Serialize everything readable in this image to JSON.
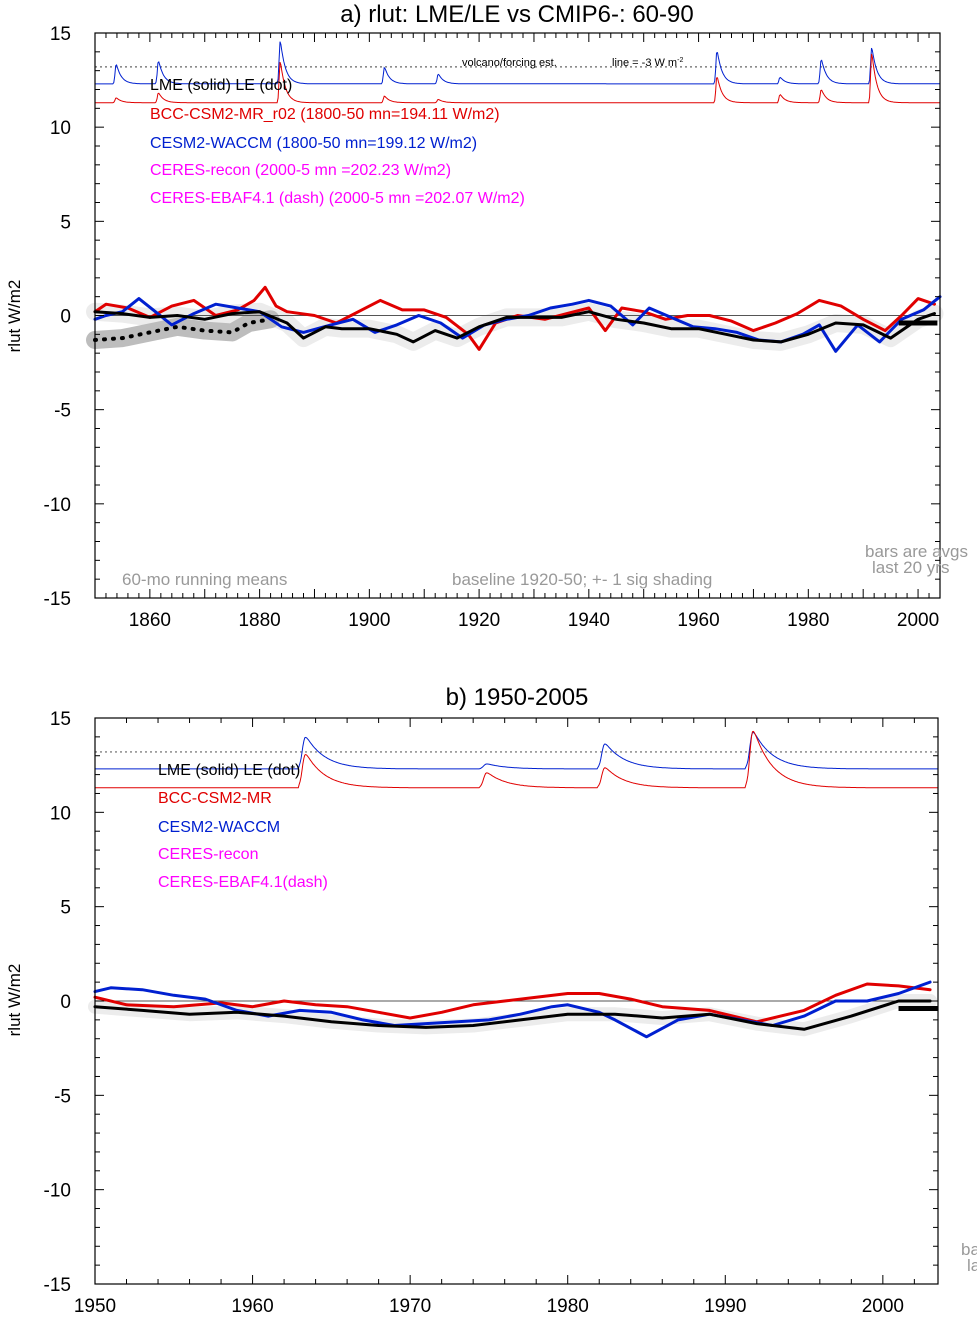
{
  "chart_data": [
    {
      "type": "line",
      "title": "a) rlut: LME/LE vs CMIP6-: 60-90",
      "ylabel": "rlut W/m2",
      "xlim": [
        1850,
        2004
      ],
      "ylim": [
        -15,
        15
      ],
      "xticks": [
        1860,
        1880,
        1900,
        1920,
        1940,
        1960,
        1980,
        2000
      ],
      "yticks": [
        -15,
        -10,
        -5,
        0,
        5,
        10,
        15
      ],
      "grid": false,
      "legend": [
        {
          "text": "LME (solid)   LE (dot)",
          "color": "#000000"
        },
        {
          "text": "BCC-CSM2-MR_r02 (1800-50 mn=194.11 W/m2)",
          "color": "#e00000"
        },
        {
          "text": "CESM2-WACCM (1800-50 mn=199.12 W/m2)",
          "color": "#0020d0"
        },
        {
          "text": "CERES-recon (2000-5 mn =202.23 W/m2)",
          "color": "#ff00ff"
        },
        {
          "text": "CERES-EBAF4.1 (dash) (2000-5 mn =202.07 W/m2)",
          "color": "#ff00ff"
        }
      ],
      "annotations": {
        "top_left": "volcano/forcing est.",
        "top_right": "line = -3 W m",
        "top_right_sup": "-2",
        "bottom_left": "60-mo running means",
        "bottom_center": "baseline 1920-50; +- 1 sig shading",
        "bottom_right_1": "bars are avgs",
        "bottom_right_2": "last 20 yrs"
      },
      "reference_line": 13.2,
      "forcing": {
        "baseline": {
          "CESM2-WACCM": 12.3,
          "BCC-CSM2-MR": 11.3
        },
        "eruptions": [
          {
            "year": 1853.8,
            "cesm": 1.2,
            "bcc": 0.3
          },
          {
            "year": 1861.5,
            "cesm": 1.4,
            "bcc": 0.6
          },
          {
            "year": 1883.7,
            "cesm": 2.6,
            "bcc": 2.5
          },
          {
            "year": 1902.7,
            "cesm": 1.0,
            "bcc": 0.4
          },
          {
            "year": 1912.5,
            "cesm": 0.6,
            "bcc": 0.2
          },
          {
            "year": 1963.3,
            "cesm": 2.0,
            "bcc": 1.6
          },
          {
            "year": 1974.8,
            "cesm": 0.4,
            "bcc": 0.5
          },
          {
            "year": 1982.3,
            "cesm": 1.5,
            "bcc": 0.8
          },
          {
            "year": 1991.5,
            "cesm": 2.2,
            "bcc": 3.0
          }
        ]
      },
      "series": [
        {
          "name": "LME",
          "color": "#000000",
          "style": "solid",
          "x": [
            1850,
            1855,
            1860,
            1865,
            1870,
            1875,
            1880,
            1885,
            1888,
            1892,
            1895,
            1900,
            1905,
            1908,
            1912,
            1916,
            1920,
            1925,
            1930,
            1935,
            1940,
            1945,
            1950,
            1955,
            1960,
            1965,
            1970,
            1975,
            1980,
            1985,
            1990,
            1995,
            2000,
            2003
          ],
          "y": [
            0.2,
            0.1,
            -0.1,
            0.0,
            -0.2,
            0.1,
            0.2,
            -0.4,
            -1.2,
            -0.6,
            -0.7,
            -0.7,
            -1.0,
            -1.4,
            -0.8,
            -1.2,
            -0.6,
            -0.1,
            -0.1,
            -0.1,
            0.2,
            -0.2,
            -0.4,
            -0.7,
            -0.7,
            -1.0,
            -1.3,
            -1.4,
            -1.0,
            -0.4,
            -0.5,
            -1.2,
            -0.2,
            0.1
          ]
        },
        {
          "name": "LE",
          "color": "#000000",
          "style": "dot",
          "x": [
            1850,
            1855,
            1860,
            1865,
            1870,
            1875,
            1878,
            1882
          ],
          "y": [
            -1.3,
            -1.2,
            -0.9,
            -0.6,
            -0.8,
            -0.9,
            -0.4,
            -0.2
          ]
        },
        {
          "name": "BCC-CSM2-MR_r02",
          "color": "#e00000",
          "style": "solid",
          "x": [
            1850,
            1852,
            1856,
            1860,
            1864,
            1868,
            1872,
            1876,
            1879,
            1881,
            1883,
            1885,
            1890,
            1894,
            1898,
            1902,
            1906,
            1910,
            1914,
            1918,
            1920,
            1923,
            1927,
            1932,
            1936,
            1940,
            1943,
            1946,
            1950,
            1954,
            1958,
            1962,
            1966,
            1970,
            1974,
            1978,
            1982,
            1986,
            1990,
            1994,
            1997,
            2000,
            2003
          ],
          "y": [
            0.2,
            0.6,
            0.4,
            -0.1,
            0.5,
            0.8,
            0.0,
            0.3,
            0.8,
            1.5,
            0.5,
            0.2,
            0.0,
            -0.4,
            0.2,
            0.8,
            0.3,
            0.3,
            -0.1,
            -1.0,
            -1.8,
            -0.4,
            0.0,
            -0.2,
            0.1,
            0.4,
            -0.8,
            0.4,
            0.2,
            -0.2,
            0.0,
            0.0,
            -0.3,
            -0.8,
            -0.4,
            0.1,
            0.8,
            0.5,
            -0.2,
            -0.8,
            0.0,
            0.9,
            0.6
          ]
        },
        {
          "name": "CESM2-WACCM",
          "color": "#0020d0",
          "style": "solid",
          "x": [
            1850,
            1852,
            1855,
            1858,
            1861,
            1864,
            1868,
            1872,
            1876,
            1880,
            1884,
            1888,
            1893,
            1897,
            1901,
            1905,
            1909,
            1913,
            1917,
            1921,
            1925,
            1929,
            1933,
            1937,
            1940,
            1944,
            1948,
            1951,
            1955,
            1959,
            1963,
            1967,
            1971,
            1975,
            1979,
            1982,
            1985,
            1989,
            1993,
            1997,
            2001,
            2004
          ],
          "y": [
            -0.2,
            0.0,
            0.2,
            0.9,
            0.2,
            -0.5,
            0.1,
            0.6,
            0.4,
            0.2,
            -0.6,
            -0.9,
            -0.5,
            -0.2,
            -0.9,
            -0.5,
            0.0,
            -0.4,
            -1.2,
            -0.5,
            -0.2,
            0.0,
            0.4,
            0.6,
            0.8,
            0.5,
            -0.5,
            0.4,
            -0.1,
            -0.6,
            -0.7,
            -0.9,
            -1.3,
            -1.4,
            -1.0,
            -0.5,
            -1.9,
            -0.5,
            -1.4,
            -0.2,
            0.3,
            1.0
          ]
        }
      ],
      "bars": [
        {
          "name": "LME",
          "x": [
            1996.5,
            2003.5
          ],
          "y": -0.4
        },
        {
          "name": "BCC-CSM2-MR",
          "x": [
            1996.5,
            2003.5
          ],
          "y": -0.4
        }
      ]
    },
    {
      "type": "line",
      "title": "b) 1950-2005",
      "ylabel": "rlut W/m2",
      "xlim": [
        1950,
        2003.5
      ],
      "ylim": [
        -15,
        15
      ],
      "xticks": [
        1950,
        1960,
        1970,
        1980,
        1990,
        2000
      ],
      "yticks": [
        -15,
        -10,
        -5,
        0,
        5,
        10,
        15
      ],
      "grid": false,
      "legend": [
        {
          "text": "LME (solid)     LE (dot)",
          "color": "#000000"
        },
        {
          "text": "BCC-CSM2-MR",
          "color": "#e00000"
        },
        {
          "text": "CESM2-WACCM",
          "color": "#0020d0"
        },
        {
          "text": "CERES-recon",
          "color": "#ff00ff"
        },
        {
          "text": "CERES-EBAF4.1(dash)",
          "color": "#ff00ff"
        }
      ],
      "annotations": {
        "bottom_right_1": "ba",
        "bottom_right_2": "la"
      },
      "reference_line": 13.2,
      "forcing": {
        "baseline": {
          "CESM2-WACCM": 12.3,
          "BCC-CSM2-MR": 11.3
        },
        "eruptions": [
          {
            "year": 1963.3,
            "cesm": 1.9,
            "bcc": 2.0
          },
          {
            "year": 1974.8,
            "cesm": 0.3,
            "bcc": 0.9
          },
          {
            "year": 1982.3,
            "cesm": 1.5,
            "bcc": 1.2
          },
          {
            "year": 1991.7,
            "cesm": 2.2,
            "bcc": 3.4
          }
        ]
      },
      "series": [
        {
          "name": "LME",
          "color": "#000000",
          "style": "solid",
          "x": [
            1950,
            1953,
            1956,
            1959,
            1962,
            1965,
            1968,
            1971,
            1974,
            1977,
            1980,
            1983,
            1986,
            1989,
            1992,
            1995,
            1998,
            2001,
            2003
          ],
          "y": [
            -0.3,
            -0.5,
            -0.7,
            -0.6,
            -0.8,
            -1.1,
            -1.3,
            -1.4,
            -1.3,
            -1.0,
            -0.7,
            -0.7,
            -0.9,
            -0.7,
            -1.2,
            -1.5,
            -0.8,
            0.0,
            0.0
          ]
        },
        {
          "name": "BCC-CSM2-MR",
          "color": "#e00000",
          "style": "solid",
          "x": [
            1950,
            1952,
            1955,
            1958,
            1960,
            1962,
            1964,
            1966,
            1968,
            1970,
            1972,
            1974,
            1976,
            1978,
            1980,
            1982,
            1984,
            1986,
            1989,
            1992,
            1995,
            1997,
            1999,
            2001,
            2003
          ],
          "y": [
            0.2,
            -0.2,
            -0.3,
            -0.1,
            -0.3,
            0.0,
            -0.2,
            -0.3,
            -0.6,
            -0.9,
            -0.6,
            -0.2,
            0.0,
            0.2,
            0.4,
            0.4,
            0.1,
            -0.3,
            -0.5,
            -1.1,
            -0.5,
            0.3,
            0.9,
            0.8,
            0.6
          ]
        },
        {
          "name": "CESM2-WACCM",
          "color": "#0020d0",
          "style": "solid",
          "x": [
            1950,
            1951,
            1953,
            1955,
            1957,
            1959,
            1961,
            1963,
            1965,
            1967,
            1969,
            1971,
            1973,
            1975,
            1977,
            1979,
            1980,
            1982,
            1983,
            1985,
            1987,
            1989,
            1991,
            1993,
            1995,
            1997,
            1999,
            2001,
            2003
          ],
          "y": [
            0.5,
            0.7,
            0.6,
            0.3,
            0.1,
            -0.5,
            -0.8,
            -0.5,
            -0.6,
            -1.0,
            -1.3,
            -1.2,
            -1.1,
            -1.0,
            -0.7,
            -0.3,
            -0.2,
            -0.6,
            -1.0,
            -1.9,
            -1.0,
            -0.7,
            -1.0,
            -1.3,
            -0.8,
            0.0,
            0.0,
            0.4,
            1.0
          ]
        }
      ],
      "bars": [
        {
          "name": "LME",
          "x": [
            2001,
            2003.5
          ],
          "y": -0.4
        },
        {
          "name": "BCC-CSM2-MR",
          "x": [
            2001,
            2003.5
          ],
          "y": -0.4
        }
      ]
    }
  ]
}
